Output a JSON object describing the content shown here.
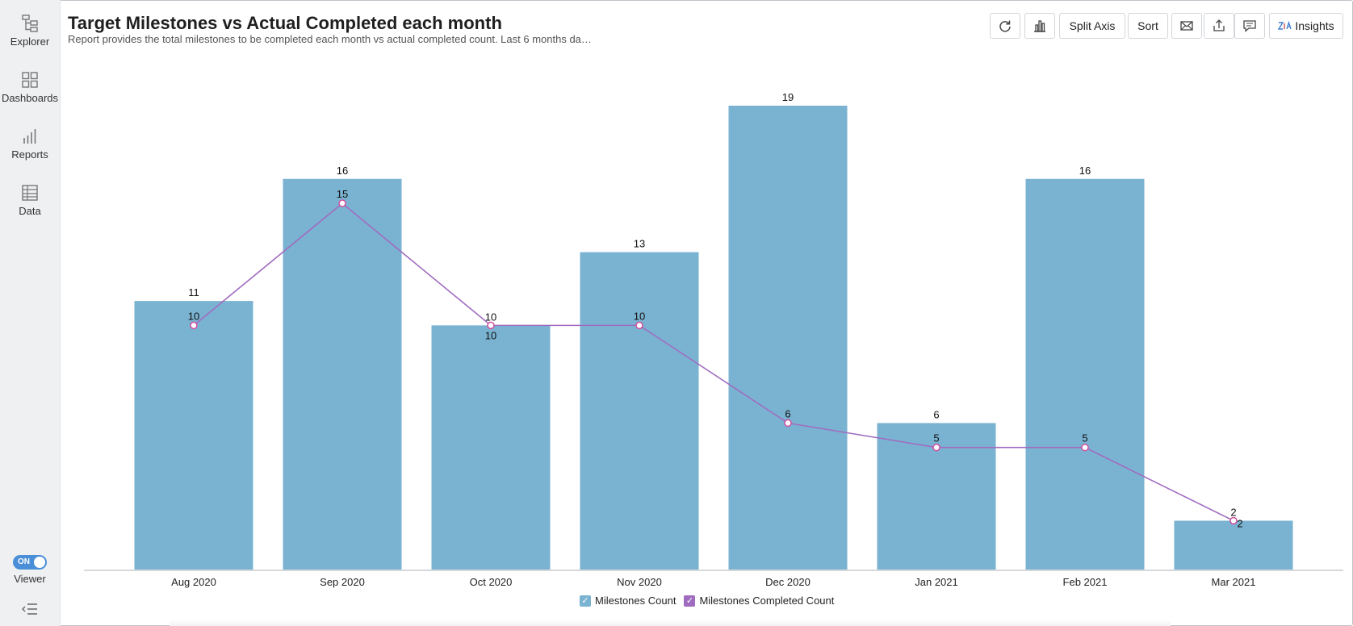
{
  "sidebar": {
    "items": [
      {
        "label": "Explorer",
        "icon": "explorer-icon"
      },
      {
        "label": "Dashboards",
        "icon": "dashboards-icon"
      },
      {
        "label": "Reports",
        "icon": "reports-icon"
      },
      {
        "label": "Data",
        "icon": "data-icon"
      }
    ],
    "toggle_state": "ON",
    "toggle_label": "Viewer"
  },
  "header": {
    "title": "Target Milestones vs Actual Completed each month",
    "subtitle": "Report provides the total milestones to be completed each month vs actual completed count. Last 6 months da…"
  },
  "toolbar": {
    "refresh_icon": "refresh-icon",
    "chart_type_icon": "bar-chart-icon",
    "split_axis_label": "Split Axis",
    "sort_label": "Sort",
    "email_icon": "email-icon",
    "export_icon": "export-icon",
    "comment_icon": "comment-icon",
    "insights_label": "Insights",
    "insights_icon": "zia-icon"
  },
  "colors": {
    "bar": "#7ab3d1",
    "line": "#a06cc0",
    "marker": "#d04fa0",
    "toggle": "#4a8fd8"
  },
  "chart_data": {
    "type": "bar",
    "categories": [
      "Aug 2020",
      "Sep 2020",
      "Oct 2020",
      "Nov 2020",
      "Dec 2020",
      "Jan 2021",
      "Feb 2021",
      "Mar 2021"
    ],
    "series": [
      {
        "name": "Milestones Count",
        "type": "bar",
        "values": [
          11,
          16,
          10,
          13,
          19,
          6,
          16,
          2
        ]
      },
      {
        "name": "Milestones Completed Count",
        "type": "line",
        "values": [
          10,
          15,
          10,
          10,
          6,
          5,
          5,
          2
        ]
      }
    ],
    "ylim": [
      0,
      19
    ],
    "grid": false,
    "legend_position": "bottom-center"
  }
}
